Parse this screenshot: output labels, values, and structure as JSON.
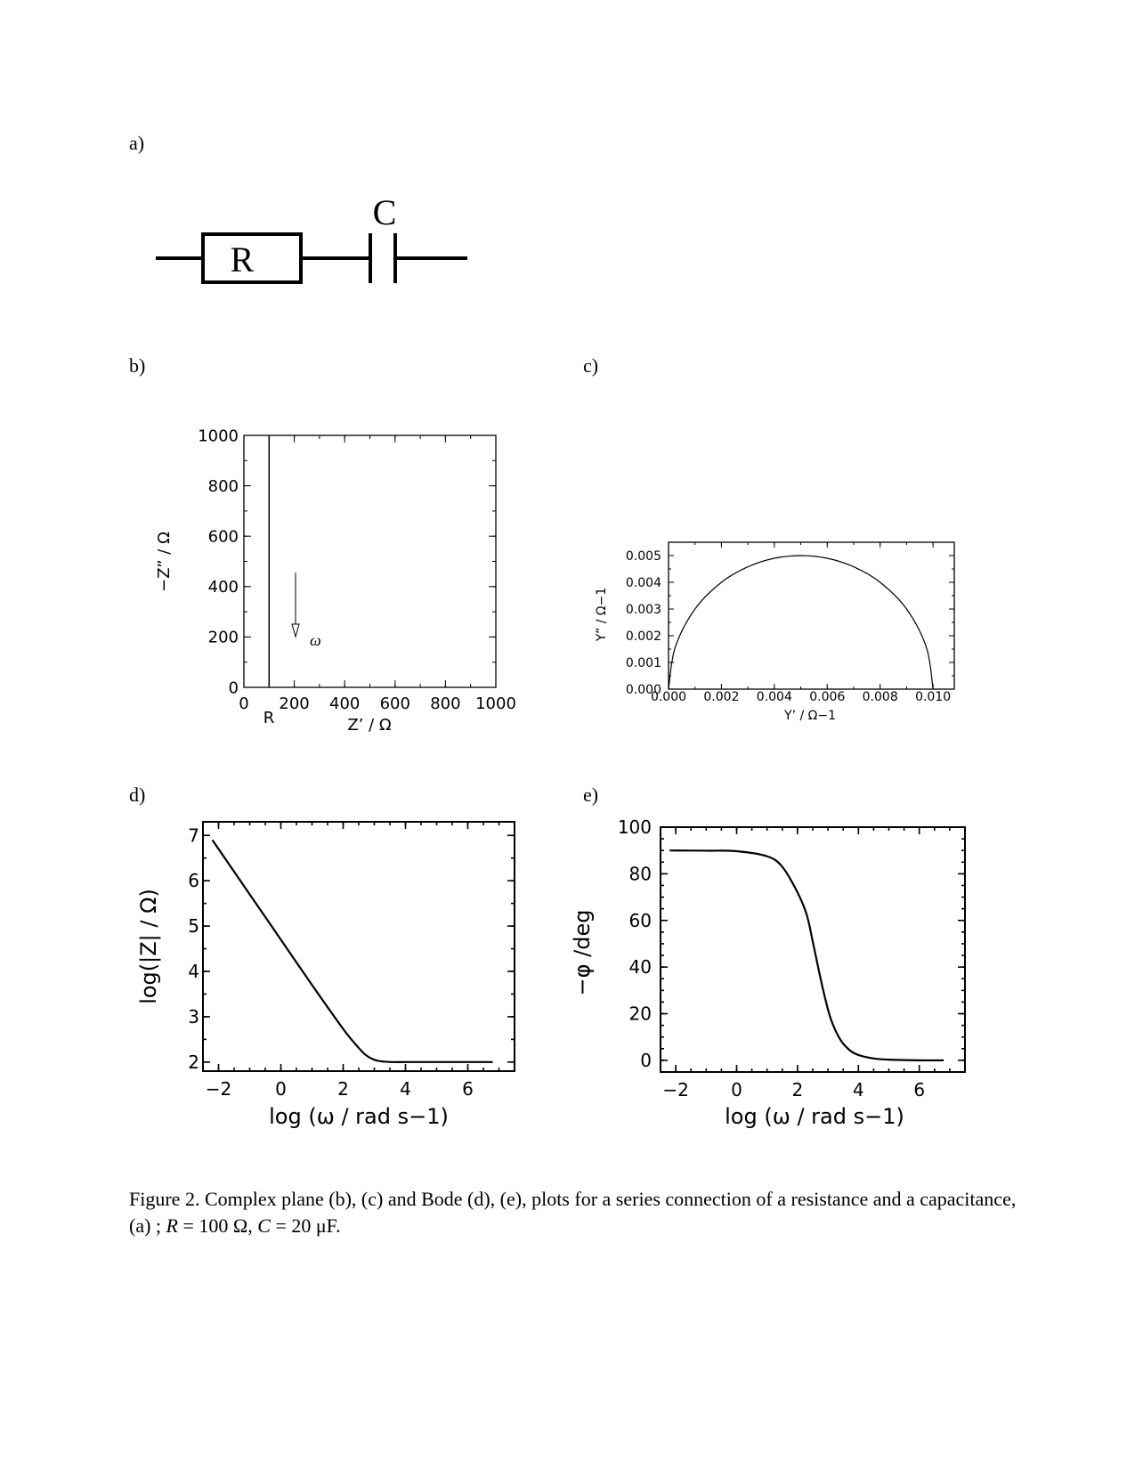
{
  "panels": {
    "a": "a)",
    "b": "b)",
    "c": "c)",
    "d": "d)",
    "e": "e)"
  },
  "circuit": {
    "resistor_label": "R",
    "capacitor_label": "C"
  },
  "caption": {
    "part1": "Figure 2. Complex plane (b), (c) and Bode (d), (e), plots for a series connection of a resistance and a capacitance, (a) ; ",
    "r_symbol": "R",
    "r_value": " = 100 Ω, ",
    "c_symbol": "C",
    "c_value": " = 20 μF."
  },
  "chart_data": [
    {
      "panel": "b",
      "type": "line",
      "xlabel": "Z’ / Ω",
      "ylabel": "−Z” / Ω",
      "xlim": [
        0,
        1000
      ],
      "ylim": [
        0,
        1000
      ],
      "xticks": [
        "0",
        "200",
        "400",
        "600",
        "800",
        "1000"
      ],
      "yticks": [
        "0",
        "200",
        "400",
        "600",
        "800",
        "1000"
      ],
      "annotations": {
        "r_marker": "R",
        "arrow_label": "ω"
      },
      "series": [
        {
          "x": [
            100,
            100
          ],
          "y": [
            0,
            1000
          ]
        }
      ]
    },
    {
      "panel": "c",
      "type": "line",
      "xlabel": "Y’ / Ω−1",
      "ylabel": "Y” / Ω−1",
      "xlim": [
        0,
        0.011
      ],
      "ylim": [
        0,
        0.0055
      ],
      "xticks": [
        "0.000",
        "0.002",
        "0.004",
        "0.006",
        "0.008",
        "0.010"
      ],
      "yticks": [
        "0.000",
        "0.001",
        "0.002",
        "0.003",
        "0.004",
        "0.005"
      ],
      "series": [
        {
          "x": [
            0.0,
            0.00025,
            0.001,
            0.002,
            0.003,
            0.004,
            0.005,
            0.006,
            0.007,
            0.008,
            0.009,
            0.00975,
            0.01
          ],
          "y": [
            0.0,
            0.00156,
            0.003,
            0.004,
            0.00458,
            0.0049,
            0.005,
            0.0049,
            0.00458,
            0.004,
            0.003,
            0.00156,
            0.0
          ]
        }
      ]
    },
    {
      "panel": "d",
      "type": "line",
      "xlabel": "log (ω / rad s−1)",
      "ylabel": "log(|Z| / Ω)",
      "xlim": [
        -2.5,
        7.5
      ],
      "ylim": [
        1.8,
        7.3
      ],
      "xticks": [
        "−2",
        "0",
        "2",
        "4",
        "6"
      ],
      "yticks": [
        "2",
        "3",
        "4",
        "5",
        "6",
        "7"
      ],
      "series": [
        {
          "x": [
            -2.2,
            -1,
            0,
            1,
            2,
            2.4,
            2.7,
            3.0,
            3.3,
            3.6,
            4,
            5,
            6,
            6.8
          ],
          "y": [
            6.9,
            5.7,
            4.7,
            3.7,
            2.73,
            2.39,
            2.17,
            2.05,
            2.01,
            2.0,
            2.0,
            2.0,
            2.0,
            2.0
          ]
        }
      ]
    },
    {
      "panel": "e",
      "type": "line",
      "xlabel": "log (ω / rad s−1)",
      "ylabel": "−φ /deg",
      "xlim": [
        -2.5,
        7.5
      ],
      "ylim": [
        -5,
        100
      ],
      "xticks": [
        "−2",
        "0",
        "2",
        "4",
        "6"
      ],
      "yticks": [
        "0",
        "20",
        "40",
        "60",
        "80",
        "100"
      ],
      "series": [
        {
          "x": [
            -2.2,
            -1,
            0,
            1,
            1.5,
            2,
            2.3,
            2.5,
            2.7,
            2.9,
            3.1,
            3.4,
            3.7,
            4,
            4.5,
            5,
            6,
            6.8
          ],
          "y": [
            90,
            89.9,
            89.7,
            87.5,
            83,
            72,
            62.5,
            51,
            38.5,
            27,
            17.5,
            9,
            4.5,
            2.3,
            0.8,
            0.3,
            0,
            0
          ]
        }
      ]
    }
  ]
}
